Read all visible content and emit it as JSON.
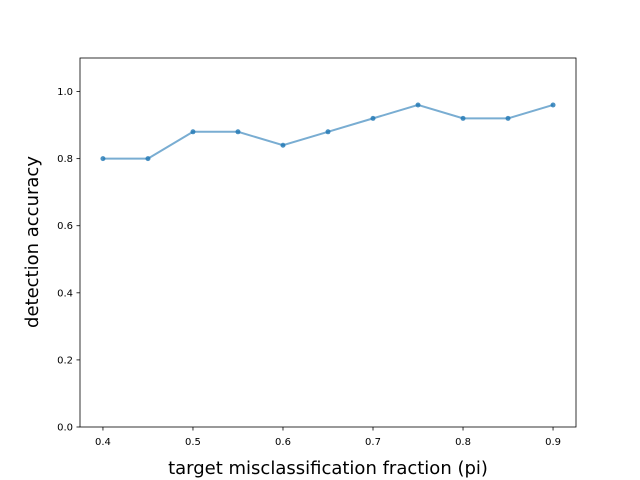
{
  "chart_data": {
    "type": "line",
    "x": [
      0.4,
      0.45,
      0.5,
      0.55,
      0.6,
      0.65,
      0.7,
      0.75,
      0.8,
      0.85,
      0.9
    ],
    "series": [
      {
        "color": "#1f77b4",
        "values": [
          0.8,
          0.8,
          0.88,
          0.88,
          0.84,
          0.88,
          0.92,
          0.96,
          0.92,
          0.92,
          0.96
        ]
      }
    ],
    "xlabel": "target misclassification fraction (pi)",
    "ylabel": "detection accuracy",
    "xlim": [
      0.3745,
      0.9255
    ],
    "ylim": [
      0,
      1.1
    ],
    "xticks": [
      0.4,
      0.5,
      0.6,
      0.7,
      0.8,
      0.9
    ],
    "yticks": [
      {
        "value": 0,
        "label": "0.0"
      },
      0.2,
      0.4,
      0.6,
      0.8,
      {
        "value": 1,
        "label": "1.0"
      }
    ]
  }
}
